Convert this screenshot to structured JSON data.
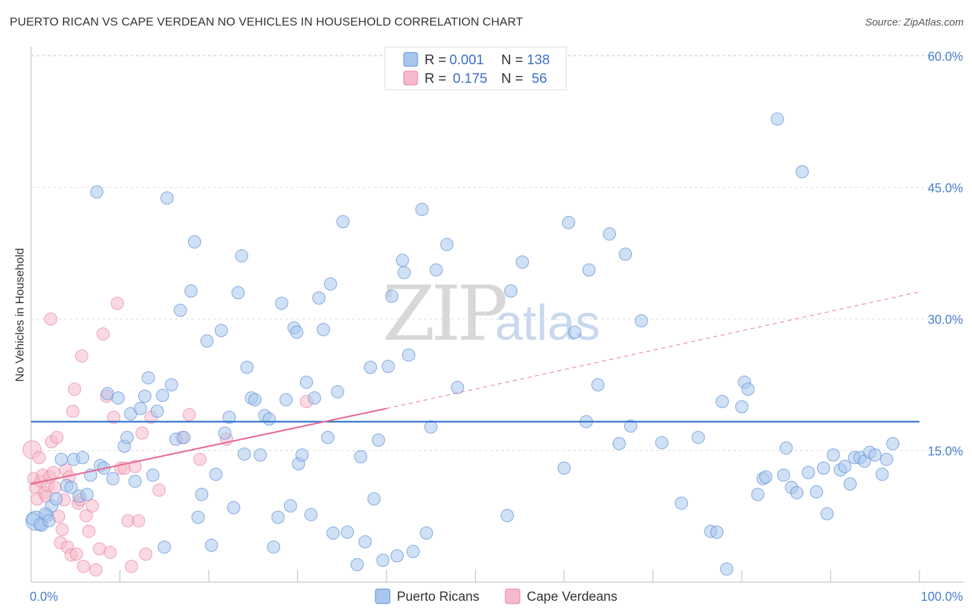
{
  "title": "PUERTO RICAN VS CAPE VERDEAN NO VEHICLES IN HOUSEHOLD CORRELATION CHART",
  "source": "Source: ZipAtlas.com",
  "watermark": {
    "zip": "ZIP",
    "atlas": "atlas"
  },
  "legend": {
    "rows": [
      {
        "r_label": "R =",
        "r_value": "0.001",
        "n_label": "N =",
        "n_value": "138"
      },
      {
        "r_label": "R =",
        "r_value": "0.175",
        "n_label": "N =",
        "n_value": "56"
      }
    ]
  },
  "colors": {
    "blue_fill": "#a9c6ec",
    "blue_stroke": "#5b8fd6",
    "blue_line": "#2e6fc7",
    "pink_fill": "#f6b9cb",
    "pink_stroke": "#e77fa0",
    "pink_line": "#e86a93",
    "tick": "#4a7fd0",
    "grid": "#dddddd"
  },
  "chart_data": {
    "type": "scatter",
    "xlabel": "",
    "ylabel": "No Vehicles in Household",
    "xlim": [
      0,
      100
    ],
    "ylim": [
      0,
      63
    ],
    "x_tick_labels": [
      {
        "value": 0,
        "label": "0.0%"
      },
      {
        "value": 100,
        "label": "100.0%"
      }
    ],
    "y_tick_labels": [
      {
        "value": 15,
        "label": "15.0%"
      },
      {
        "value": 30,
        "label": "30.0%"
      },
      {
        "value": 45,
        "label": "45.0%"
      },
      {
        "value": 60,
        "label": "60.0%"
      }
    ],
    "grid": true,
    "legend_position": "top-center",
    "series": [
      {
        "name": "Puerto Ricans",
        "color": "#a9c6ec",
        "trend": {
          "x": [
            0,
            100
          ],
          "y": [
            18.3,
            18.3
          ],
          "style": "solid"
        },
        "points": [
          [
            0.5,
            7.0
          ],
          [
            1.2,
            6.5
          ],
          [
            1.8,
            7.6
          ],
          [
            2.3,
            8.7
          ],
          [
            2.8,
            9.5
          ],
          [
            3.4,
            14.0
          ],
          [
            4.0,
            11.0
          ],
          [
            4.5,
            10.8
          ],
          [
            4.8,
            14.0
          ],
          [
            5.4,
            9.8
          ],
          [
            5.8,
            14.2
          ],
          [
            6.3,
            10.0
          ],
          [
            6.7,
            12.2
          ],
          [
            7.4,
            44.5
          ],
          [
            7.8,
            13.3
          ],
          [
            8.2,
            13.0
          ],
          [
            8.6,
            21.5
          ],
          [
            9.2,
            11.8
          ],
          [
            9.8,
            21.0
          ],
          [
            10.5,
            15.5
          ],
          [
            10.8,
            16.5
          ],
          [
            11.2,
            19.2
          ],
          [
            11.7,
            11.5
          ],
          [
            12.3,
            19.8
          ],
          [
            12.8,
            21.2
          ],
          [
            13.2,
            23.3
          ],
          [
            13.7,
            12.2
          ],
          [
            14.2,
            19.5
          ],
          [
            14.8,
            21.3
          ],
          [
            15.3,
            43.8
          ],
          [
            15.8,
            22.5
          ],
          [
            16.3,
            16.3
          ],
          [
            16.8,
            31.0
          ],
          [
            17.2,
            16.5
          ],
          [
            18.0,
            33.2
          ],
          [
            18.4,
            38.8
          ],
          [
            18.8,
            7.4
          ],
          [
            19.2,
            10.0
          ],
          [
            19.8,
            27.5
          ],
          [
            20.3,
            4.2
          ],
          [
            20.8,
            12.3
          ],
          [
            21.4,
            28.7
          ],
          [
            21.8,
            17.0
          ],
          [
            22.3,
            18.8
          ],
          [
            22.8,
            8.5
          ],
          [
            23.3,
            33.0
          ],
          [
            23.7,
            37.2
          ],
          [
            24.3,
            24.5
          ],
          [
            24.8,
            21.0
          ],
          [
            25.2,
            20.8
          ],
          [
            25.8,
            14.5
          ],
          [
            26.3,
            19.0
          ],
          [
            26.8,
            18.6
          ],
          [
            27.3,
            4.0
          ],
          [
            27.8,
            7.4
          ],
          [
            28.2,
            31.8
          ],
          [
            28.7,
            20.8
          ],
          [
            29.2,
            8.7
          ],
          [
            29.6,
            29.0
          ],
          [
            30.1,
            13.5
          ],
          [
            30.5,
            14.5
          ],
          [
            31.0,
            22.8
          ],
          [
            31.5,
            7.7
          ],
          [
            31.9,
            21.0
          ],
          [
            32.4,
            32.4
          ],
          [
            32.9,
            28.8
          ],
          [
            33.4,
            16.5
          ],
          [
            34.0,
            5.6
          ],
          [
            34.5,
            21.7
          ],
          [
            35.1,
            41.1
          ],
          [
            35.6,
            5.7
          ],
          [
            36.7,
            2.0
          ],
          [
            37.1,
            14.3
          ],
          [
            37.6,
            4.6
          ],
          [
            38.2,
            24.5
          ],
          [
            38.6,
            9.5
          ],
          [
            39.1,
            16.2
          ],
          [
            39.6,
            2.5
          ],
          [
            40.2,
            24.6
          ],
          [
            40.6,
            32.6
          ],
          [
            41.2,
            3.0
          ],
          [
            42.0,
            35.3
          ],
          [
            42.5,
            25.9
          ],
          [
            43.0,
            3.5
          ],
          [
            44.0,
            42.5
          ],
          [
            44.5,
            5.6
          ],
          [
            45.0,
            17.7
          ],
          [
            45.6,
            35.6
          ],
          [
            46.8,
            38.5
          ],
          [
            48.0,
            22.2
          ],
          [
            53.6,
            7.6
          ],
          [
            54.0,
            33.2
          ],
          [
            60.5,
            41.0
          ],
          [
            61.2,
            28.5
          ],
          [
            62.5,
            18.3
          ],
          [
            62.8,
            35.6
          ],
          [
            63.8,
            22.5
          ],
          [
            65.1,
            39.7
          ],
          [
            66.2,
            15.8
          ],
          [
            66.9,
            37.4
          ],
          [
            67.5,
            17.8
          ],
          [
            68.7,
            29.8
          ],
          [
            71.0,
            15.9
          ],
          [
            73.2,
            9.0
          ],
          [
            75.1,
            16.5
          ],
          [
            76.5,
            5.8
          ],
          [
            77.2,
            5.7
          ],
          [
            77.8,
            20.6
          ],
          [
            78.3,
            1.5
          ],
          [
            80.0,
            20.0
          ],
          [
            80.3,
            22.8
          ],
          [
            80.7,
            22.0
          ],
          [
            81.8,
            10.0
          ],
          [
            82.4,
            11.8
          ],
          [
            82.7,
            12.0
          ],
          [
            84.0,
            52.8
          ],
          [
            84.7,
            12.2
          ],
          [
            85.0,
            15.3
          ],
          [
            85.6,
            10.8
          ],
          [
            86.2,
            10.2
          ],
          [
            86.8,
            46.8
          ],
          [
            87.5,
            12.5
          ],
          [
            88.4,
            10.3
          ],
          [
            89.2,
            13.0
          ],
          [
            89.6,
            7.8
          ],
          [
            90.3,
            14.5
          ],
          [
            91.1,
            12.8
          ],
          [
            91.6,
            13.2
          ],
          [
            92.2,
            11.2
          ],
          [
            92.7,
            14.2
          ],
          [
            93.3,
            14.2
          ],
          [
            93.8,
            13.8
          ],
          [
            94.4,
            14.8
          ],
          [
            95.0,
            14.5
          ],
          [
            95.8,
            12.3
          ],
          [
            96.3,
            14.0
          ],
          [
            97.0,
            15.8
          ],
          [
            0.2,
            7.2
          ],
          [
            1.0,
            6.6
          ],
          [
            1.6,
            7.8
          ],
          [
            2.0,
            7.0
          ],
          [
            24.0,
            14.6
          ],
          [
            41.8,
            36.7
          ],
          [
            55.3,
            36.5
          ],
          [
            33.7,
            34.0
          ],
          [
            29.9,
            28.5
          ],
          [
            15.0,
            4.0
          ],
          [
            60.0,
            13.0
          ]
        ]
      },
      {
        "name": "Cape Verdeans",
        "color": "#f6b9cb",
        "trend": {
          "x": [
            0,
            40
          ],
          "y": [
            11.2,
            19.8
          ],
          "dashed_extension": {
            "x": [
              40,
              100
            ],
            "y": [
              19.8,
              33.1
            ]
          }
        },
        "points": [
          [
            0.1,
            15.1
          ],
          [
            0.3,
            11.8
          ],
          [
            0.5,
            10.8
          ],
          [
            0.7,
            9.5
          ],
          [
            0.9,
            14.2
          ],
          [
            1.1,
            11.5
          ],
          [
            1.3,
            12.2
          ],
          [
            1.5,
            10.2
          ],
          [
            1.7,
            9.8
          ],
          [
            1.9,
            11.0
          ],
          [
            2.1,
            12.0
          ],
          [
            2.3,
            16.0
          ],
          [
            2.5,
            12.5
          ],
          [
            2.7,
            10.8
          ],
          [
            2.9,
            16.5
          ],
          [
            3.1,
            7.5
          ],
          [
            3.3,
            4.5
          ],
          [
            3.5,
            6.0
          ],
          [
            3.7,
            9.4
          ],
          [
            3.9,
            12.8
          ],
          [
            4.1,
            4.0
          ],
          [
            4.3,
            12.0
          ],
          [
            4.5,
            3.1
          ],
          [
            4.7,
            19.5
          ],
          [
            4.9,
            22.0
          ],
          [
            5.1,
            3.2
          ],
          [
            5.3,
            9.0
          ],
          [
            5.5,
            9.4
          ],
          [
            5.7,
            25.8
          ],
          [
            5.9,
            1.8
          ],
          [
            6.2,
            7.6
          ],
          [
            6.5,
            5.8
          ],
          [
            6.9,
            8.7
          ],
          [
            7.3,
            1.4
          ],
          [
            7.7,
            3.8
          ],
          [
            8.1,
            28.3
          ],
          [
            8.5,
            21.2
          ],
          [
            8.9,
            3.4
          ],
          [
            9.3,
            18.8
          ],
          [
            9.7,
            31.8
          ],
          [
            10.1,
            13.0
          ],
          [
            10.5,
            13.0
          ],
          [
            10.9,
            7.0
          ],
          [
            11.3,
            1.8
          ],
          [
            11.7,
            13.2
          ],
          [
            12.1,
            7.0
          ],
          [
            12.5,
            17.0
          ],
          [
            12.9,
            3.2
          ],
          [
            13.5,
            18.8
          ],
          [
            14.4,
            10.5
          ],
          [
            17.0,
            16.5
          ],
          [
            17.8,
            19.1
          ],
          [
            19.0,
            14.0
          ],
          [
            22.0,
            16.3
          ],
          [
            31.0,
            20.6
          ],
          [
            2.2,
            30.0
          ]
        ]
      }
    ]
  },
  "bottom_legend": [
    {
      "label": "Puerto Ricans",
      "color": "#a9c6ec"
    },
    {
      "label": "Cape Verdeans",
      "color": "#f6b9cb"
    }
  ]
}
